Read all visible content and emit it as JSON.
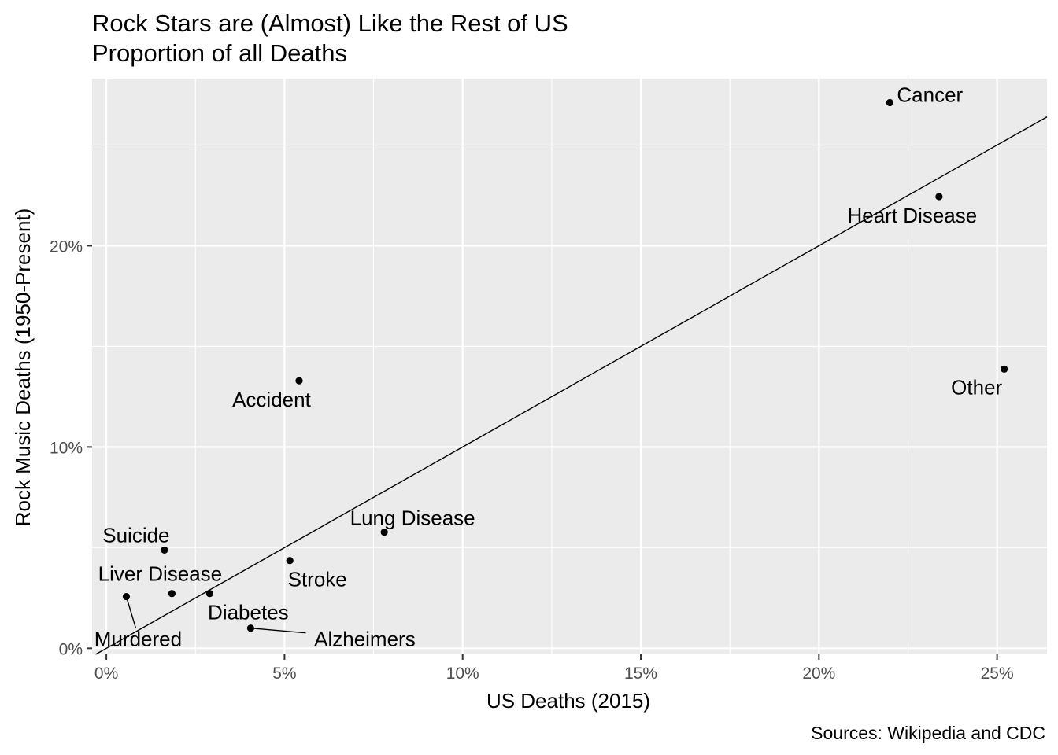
{
  "chart_data": {
    "type": "scatter",
    "title": "Rock Stars are (Almost) Like the Rest of US",
    "subtitle": "Proportion of all Deaths",
    "xlabel": "US Deaths (2015)",
    "ylabel": "Rock Music Deaths (1950-Present)",
    "caption": "Sources: Wikipedia and CDC",
    "xlim": [
      -0.004,
      0.264
    ],
    "ylim": [
      -0.003,
      0.283
    ],
    "x_ticks": [
      {
        "value": 0,
        "label": "0%"
      },
      {
        "value": 0.05,
        "label": "5%"
      },
      {
        "value": 0.1,
        "label": "10%"
      },
      {
        "value": 0.15,
        "label": "15%"
      },
      {
        "value": 0.2,
        "label": "20%"
      },
      {
        "value": 0.25,
        "label": "25%"
      }
    ],
    "y_ticks": [
      {
        "value": 0,
        "label": "0%"
      },
      {
        "value": 0.1,
        "label": "10%"
      },
      {
        "value": 0.2,
        "label": "20%"
      }
    ],
    "reference_line": {
      "slope": 1,
      "intercept": 0
    },
    "points": [
      {
        "label": "Cancer",
        "x": 0.2199,
        "y": 0.2711
      },
      {
        "label": "Heart Disease",
        "x": 0.2337,
        "y": 0.2244
      },
      {
        "label": "Other",
        "x": 0.252,
        "y": 0.1387
      },
      {
        "label": "Accident",
        "x": 0.0541,
        "y": 0.1329
      },
      {
        "label": "Lung Disease",
        "x": 0.078,
        "y": 0.0577
      },
      {
        "label": "Suicide",
        "x": 0.0163,
        "y": 0.0488
      },
      {
        "label": "Stroke",
        "x": 0.0515,
        "y": 0.0436
      },
      {
        "label": "Liver Disease",
        "x": 0.0184,
        "y": 0.0272
      },
      {
        "label": "Diabetes",
        "x": 0.029,
        "y": 0.0272
      },
      {
        "label": "Murdered",
        "x": 0.0056,
        "y": 0.0257
      },
      {
        "label": "Alzheimers",
        "x": 0.0405,
        "y": 0.01
      }
    ]
  }
}
